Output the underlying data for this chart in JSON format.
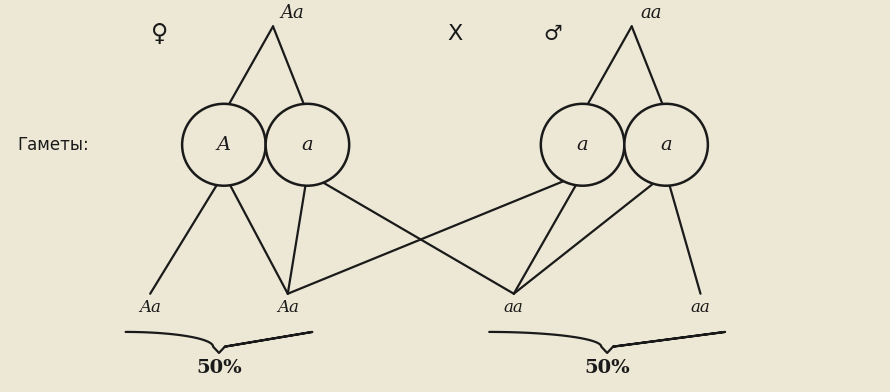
{
  "bg_color": "#ede8d5",
  "line_color": "#1a1a1a",
  "circle_facecolor": "#ede8d5",
  "gametes_label": "Гаметы:",
  "cross_symbol": "X",
  "female_symbol": "♀",
  "male_symbol": "♂",
  "female_genotype": "Aa",
  "male_genotype": "aa",
  "gamete_labels": [
    "A",
    "a",
    "a",
    "a"
  ],
  "offspring_labels": [
    "Aa",
    "Aa",
    "aa",
    "aa"
  ],
  "percent_left": "50%",
  "percent_right": "50%",
  "figsize": [
    8.9,
    3.92
  ],
  "dpi": 100,
  "xlim": [
    0,
    18
  ],
  "ylim": [
    0,
    10
  ]
}
